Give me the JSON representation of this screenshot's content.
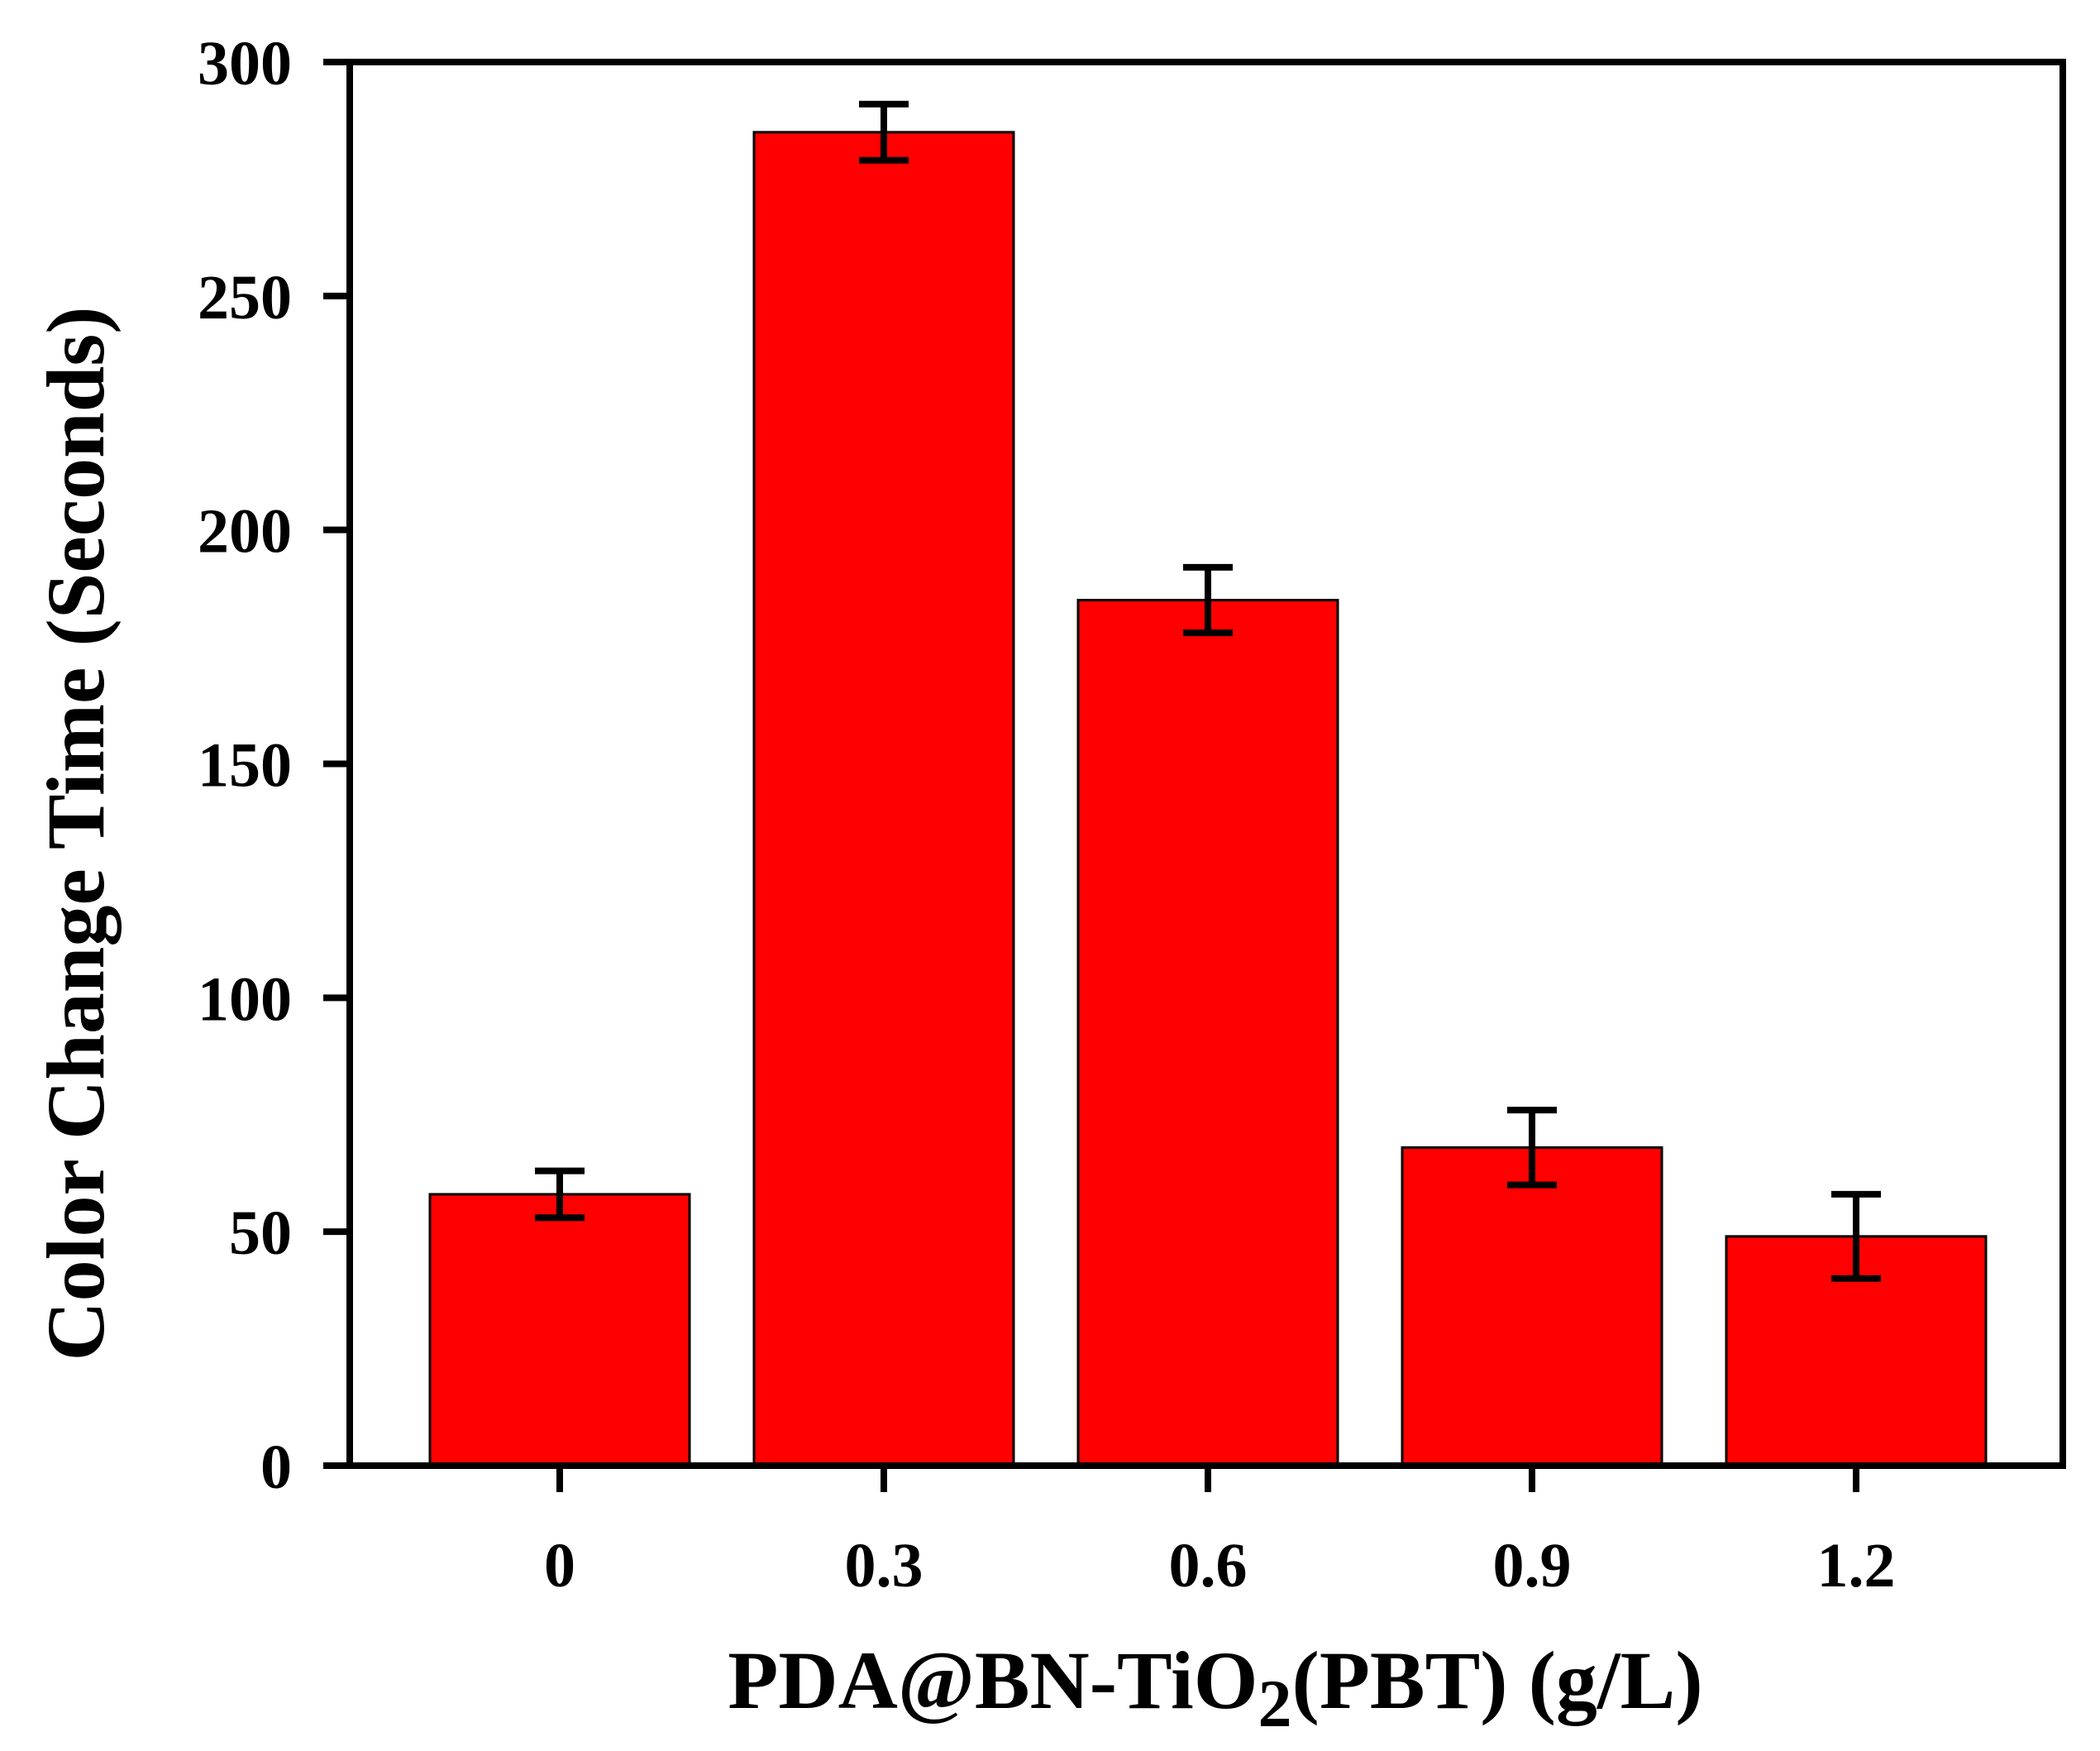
{
  "chart_data": {
    "type": "bar",
    "title": "",
    "categories": [
      "0",
      "0.3",
      "0.6",
      "0.9",
      "1.2"
    ],
    "values": [
      58,
      285,
      185,
      68,
      49
    ],
    "errors": [
      5,
      6,
      7,
      8,
      9
    ],
    "xlabel": "PDA@BN-TiO2(PBT) (g/L)",
    "xlabel_parts": {
      "main": "PDA@BN-TiO",
      "sub": "2",
      "rest": "(PBT) (g/L)"
    },
    "ylabel": "Color Change Time (Seconds)",
    "ylim": [
      0,
      300
    ],
    "yticks": [
      0,
      50,
      100,
      150,
      200,
      250,
      300
    ],
    "grid": false,
    "bar_color": "#ff0000",
    "edge_color": "#000000"
  }
}
